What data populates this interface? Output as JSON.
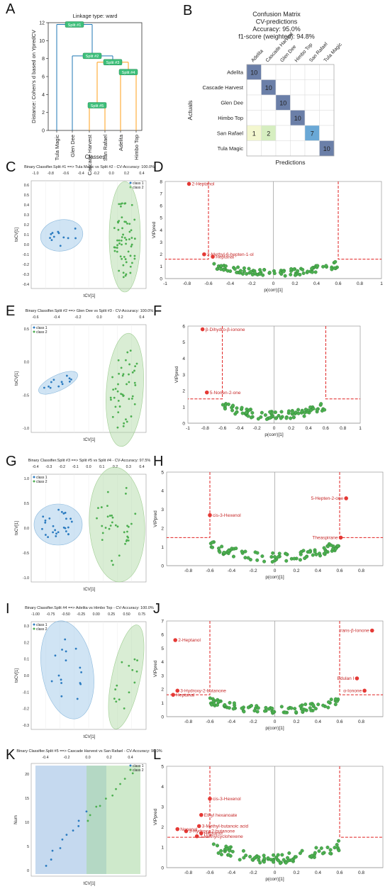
{
  "panel_letters": [
    "A",
    "B",
    "C",
    "D",
    "E",
    "F",
    "G",
    "H",
    "I",
    "J",
    "K",
    "L"
  ],
  "chart_data": [
    {
      "panel": "A",
      "type": "dendrogram",
      "title": "Linkage type: ward",
      "ylabel": "Distance: Cohen's d based on YpredCV",
      "xlabel": "Classes",
      "ylim": [
        0,
        12
      ],
      "yticks": [
        0,
        2,
        4,
        6,
        8,
        10,
        12
      ],
      "leaves": [
        "Tula Magic",
        "Glen Dee",
        "Cascade Harvest",
        "San Rafael",
        "Adelita",
        "Himbo Top"
      ],
      "splits": [
        {
          "label": "Split #1",
          "height": 11.8
        },
        {
          "label": "Split #2",
          "height": 8.3
        },
        {
          "label": "Split #3",
          "height": 7.6
        },
        {
          "label": "Split #4",
          "height": 6.5
        },
        {
          "label": "Split #5",
          "height": 2.8
        }
      ]
    },
    {
      "panel": "B",
      "type": "heatmap",
      "title_lines": [
        "Confusion Matrix",
        "CV-predictions",
        "Accuracy: 95.0%",
        "f1-score (weighted): 94.8%"
      ],
      "xlabel": "Predictions",
      "ylabel": "Actuals",
      "labels": [
        "Adelita",
        "Cascade Harvest",
        "Glen Dee",
        "Himbo Top",
        "San Rafael",
        "Tula Magic"
      ],
      "matrix": [
        [
          10,
          0,
          0,
          0,
          0,
          0
        ],
        [
          0,
          10,
          0,
          0,
          0,
          0
        ],
        [
          0,
          0,
          10,
          0,
          0,
          0
        ],
        [
          0,
          0,
          0,
          10,
          0,
          0
        ],
        [
          1,
          2,
          0,
          0,
          7,
          0
        ],
        [
          0,
          0,
          0,
          0,
          0,
          10
        ]
      ]
    },
    {
      "panel": "C",
      "type": "scatter",
      "title": "Binary Classifier.Split #1 ==> Tula Magic vs Split #2 - CV-Accuracy: 100.0%",
      "xlabel": "tCV[1]",
      "ylabel": "toCV[1]",
      "xticks": [
        "-1.0",
        "-0.8",
        "-0.6",
        "-0.4",
        "-0.2",
        "0.0",
        "0.2",
        "0.4"
      ],
      "yticks": [
        "0.6",
        "0.5",
        "0.4",
        "0.3",
        "0.2",
        "0.1",
        "0.0",
        "-0.1",
        "-0.2",
        "-0.3",
        "-0.4"
      ],
      "legend": [
        "class 1",
        "class 2"
      ]
    },
    {
      "panel": "D",
      "type": "scatter",
      "xlabel": "p(corr)[1]",
      "ylabel": "VIPpred",
      "xlim": [
        -1,
        1
      ],
      "ylim": [
        0,
        8
      ],
      "xticks": [
        "-1",
        "-0.8",
        "-0.6",
        "-0.4",
        "-0.2",
        "0",
        "0.2",
        "0.4",
        "0.6",
        "0.8",
        "1"
      ],
      "yticks": [
        "0",
        "1",
        "2",
        "3",
        "4",
        "5",
        "6",
        "7",
        "8"
      ],
      "highlighted": [
        {
          "label": "2-Heptanol",
          "x": -0.78,
          "y": 7.8
        },
        {
          "label": "2-Methyl-6-hepten-1-ol",
          "x": -0.64,
          "y": 2.0
        },
        {
          "label": "Heptanal",
          "x": -0.56,
          "y": 1.8
        }
      ]
    },
    {
      "panel": "E",
      "type": "scatter",
      "title": "Binary Classifier.Split #2 ==> Glen Dee vs Split #3 - CV-Accuracy: 100.0%",
      "xlabel": "tCV[1]",
      "ylabel": "toCV[1]",
      "xticks": [
        "-0.6",
        "-0.4",
        "-0.2",
        "0.0",
        "0.2",
        "0.4"
      ],
      "yticks": [
        "0.5",
        "0.0",
        "-0.5",
        "-1.0"
      ],
      "legend": [
        "class 1",
        "class 2"
      ]
    },
    {
      "panel": "F",
      "type": "scatter",
      "xlabel": "p(corr)[1]",
      "ylabel": "VIPpred",
      "xlim": [
        -1,
        1
      ],
      "ylim": [
        0,
        6
      ],
      "xticks": [
        "-1",
        "-0.8",
        "-0.6",
        "-0.4",
        "-0.2",
        "0",
        "0.2",
        "0.4",
        "0.6",
        "0.8",
        "1"
      ],
      "yticks": [
        "0",
        "1",
        "2",
        "3",
        "4",
        "5",
        "6"
      ],
      "highlighted": [
        {
          "label": "β-Dihydro-β-ionone",
          "x": -0.83,
          "y": 5.8
        },
        {
          "label": "5-Nonen-2-one",
          "x": -0.78,
          "y": 1.9
        }
      ]
    },
    {
      "panel": "G",
      "type": "scatter",
      "title": "Binary Classifier.Split #3 ==> Split #5 vs Split #4 - CV-Accuracy: 97.5%",
      "xlabel": "tCV[1]",
      "ylabel": "toCV[1]",
      "xticks": [
        "-0.4",
        "-0.3",
        "-0.2",
        "-0.1",
        "0.0",
        "0.1",
        "0.2",
        "0.3",
        "0.4"
      ],
      "yticks": [
        "1.0",
        "0.5",
        "0.0",
        "-0.5",
        "-1.0"
      ],
      "legend": [
        "class 1",
        "class 2"
      ]
    },
    {
      "panel": "H",
      "type": "scatter",
      "xlabel": "p(corr)[1]",
      "ylabel": "VIPpred",
      "xlim": [
        -1,
        1
      ],
      "ylim": [
        0,
        5
      ],
      "xticks": [
        "-0.8",
        "-0.6",
        "-0.4",
        "-0.2",
        "0",
        "0.2",
        "0.4",
        "0.6",
        "0.8"
      ],
      "yticks": [
        "0",
        "1",
        "2",
        "3",
        "4",
        "5"
      ],
      "highlighted": [
        {
          "label": "5-Hepten-2-one",
          "x": 0.66,
          "y": 3.6
        },
        {
          "label": "cis-3-Hexenol",
          "x": -0.6,
          "y": 2.7
        },
        {
          "label": "Theaspirane",
          "x": 0.61,
          "y": 1.5
        }
      ]
    },
    {
      "panel": "I",
      "type": "scatter",
      "title": "Binary Classifier.Split #4 ==> Adelita vs Himbo Top - CV-Accuracy: 100.0%",
      "xlabel": "tCV[1]",
      "ylabel": "toCV[1]",
      "xticks": [
        "-1.00",
        "-0.75",
        "-0.50",
        "-0.25",
        "0.00",
        "0.25",
        "0.50",
        "0.75"
      ],
      "yticks": [
        "0.3",
        "0.2",
        "0.1",
        "0.0",
        "-0.1",
        "-0.2",
        "-0.3"
      ],
      "legend": [
        "class 1",
        "class 2"
      ]
    },
    {
      "panel": "J",
      "type": "scatter",
      "xlabel": "p(corr)[1]",
      "ylabel": "VIPpred",
      "xlim": [
        -1,
        1
      ],
      "ylim": [
        0,
        7
      ],
      "xticks": [
        "-0.8",
        "-0.6",
        "-0.4",
        "-0.2",
        "0",
        "0.2",
        "0.4",
        "0.6",
        "0.8"
      ],
      "yticks": [
        "0",
        "1",
        "2",
        "3",
        "4",
        "5",
        "6",
        "7"
      ],
      "highlighted": [
        {
          "label": "trans-β-Ionone",
          "x": 0.9,
          "y": 6.3
        },
        {
          "label": "2-Heptanol",
          "x": -0.92,
          "y": 5.6
        },
        {
          "label": "Edulan I",
          "x": 0.76,
          "y": 2.8
        },
        {
          "label": "3-Hydroxy-2-butanone",
          "x": -0.9,
          "y": 1.9
        },
        {
          "label": "Heptanal",
          "x": -0.94,
          "y": 1.6
        },
        {
          "label": "α-Ionone",
          "x": 0.83,
          "y": 1.9
        }
      ]
    },
    {
      "panel": "K",
      "type": "scatter",
      "title": "Binary Classifier.Split #5 ==> Cascade Harvest vs San Rafael - CV-Accuracy: 90.0%",
      "xlabel": "tCV[1]",
      "ylabel": "Num",
      "xticks": [
        "-0.4",
        "-0.2",
        "0.0",
        "0.2",
        "0.4"
      ],
      "yticks": [
        "0",
        "5",
        "10",
        "15",
        "20"
      ],
      "legend": [
        "class 1",
        "class 2"
      ]
    },
    {
      "panel": "L",
      "type": "scatter",
      "xlabel": "p(corr)[1]",
      "ylabel": "VIPpred",
      "xlim": [
        -1,
        1
      ],
      "ylim": [
        0,
        5
      ],
      "xticks": [
        "-0.8",
        "-0.6",
        "-0.4",
        "-0.2",
        "0",
        "0.2",
        "0.4",
        "0.6",
        "0.8"
      ],
      "yticks": [
        "0",
        "1",
        "2",
        "3",
        "4",
        "5"
      ],
      "highlighted": [
        {
          "label": "cis-3-Hexenol",
          "x": -0.6,
          "y": 3.4
        },
        {
          "label": "Ethyl hexanoate",
          "x": -0.68,
          "y": 2.6
        },
        {
          "label": "3-Methyl-butanoic acid",
          "x": -0.7,
          "y": 2.05
        },
        {
          "label": "3-Hydroxy-2-butanone",
          "x": -0.82,
          "y": 1.8
        },
        {
          "label": "Heptanol",
          "x": -0.68,
          "y": 1.7
        },
        {
          "label": "Nonanal",
          "x": -0.9,
          "y": 1.9
        },
        {
          "label": "2-Methylcyclohexene",
          "x": -0.72,
          "y": 1.55
        }
      ]
    }
  ]
}
